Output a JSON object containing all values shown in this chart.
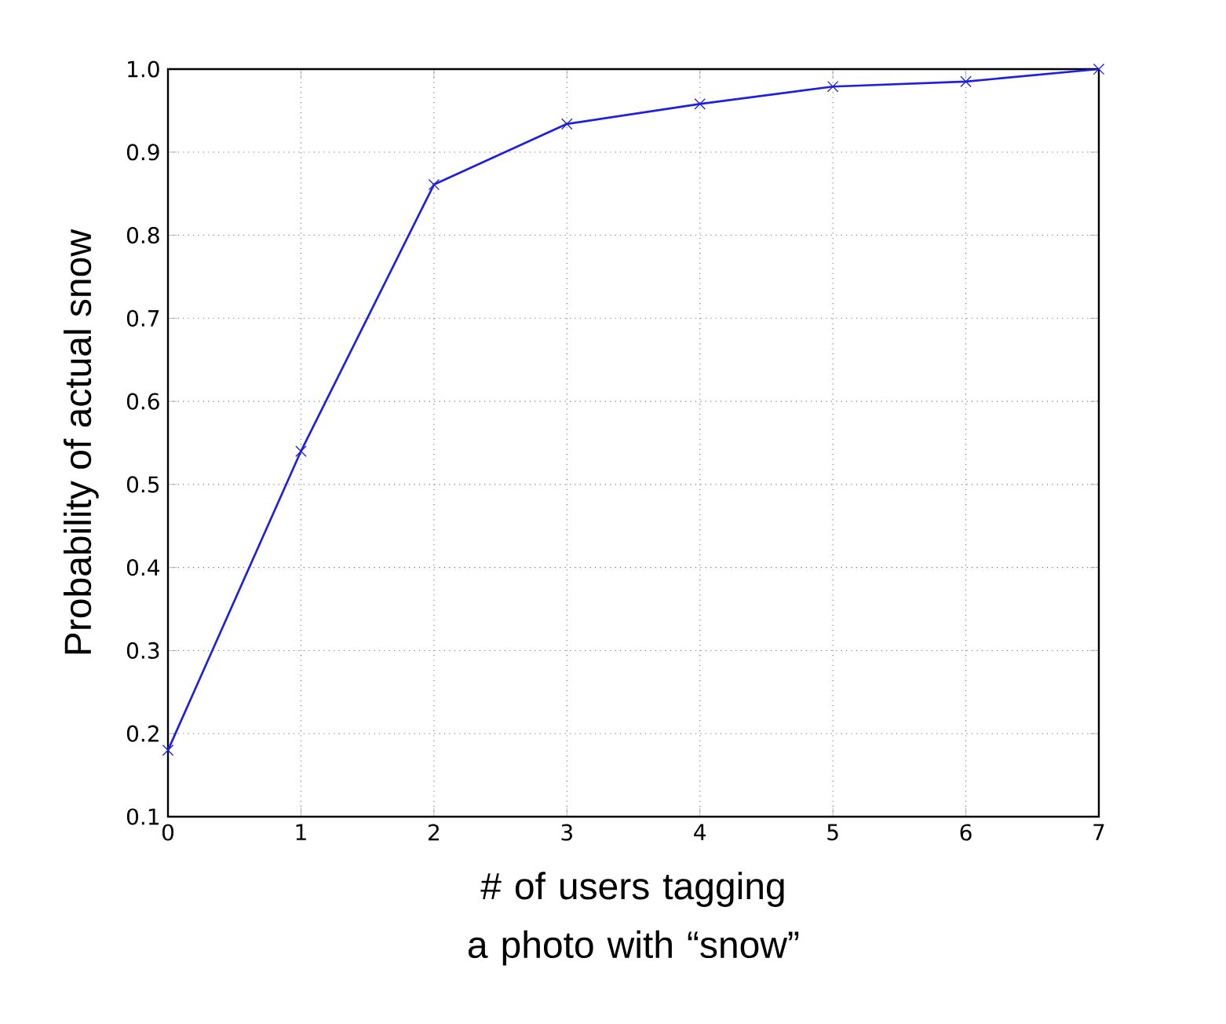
{
  "chart_data": {
    "type": "line",
    "xlabel": "# of users tagging a photo with “snow”",
    "ylabel": "Probability of actual snow",
    "x": [
      0,
      1,
      2,
      3,
      4,
      5,
      6,
      7
    ],
    "series": [
      {
        "color": "#1f1fe0",
        "values": [
          0.18,
          0.54,
          0.861,
          0.934,
          0.958,
          0.979,
          0.985,
          1.0
        ]
      }
    ],
    "xlim": [
      0,
      7
    ],
    "xticks": [
      0,
      1,
      2,
      3,
      4,
      5,
      6,
      7
    ],
    "ylim": [
      0.1,
      1.0
    ],
    "yticks": [
      0.1,
      0.2,
      0.3,
      0.4,
      0.5,
      0.6,
      0.7,
      0.8,
      0.9,
      {
        "value": 1,
        "label": "1.0"
      }
    ],
    "grid": true,
    "marker": "cross",
    "line_style": "solid"
  }
}
